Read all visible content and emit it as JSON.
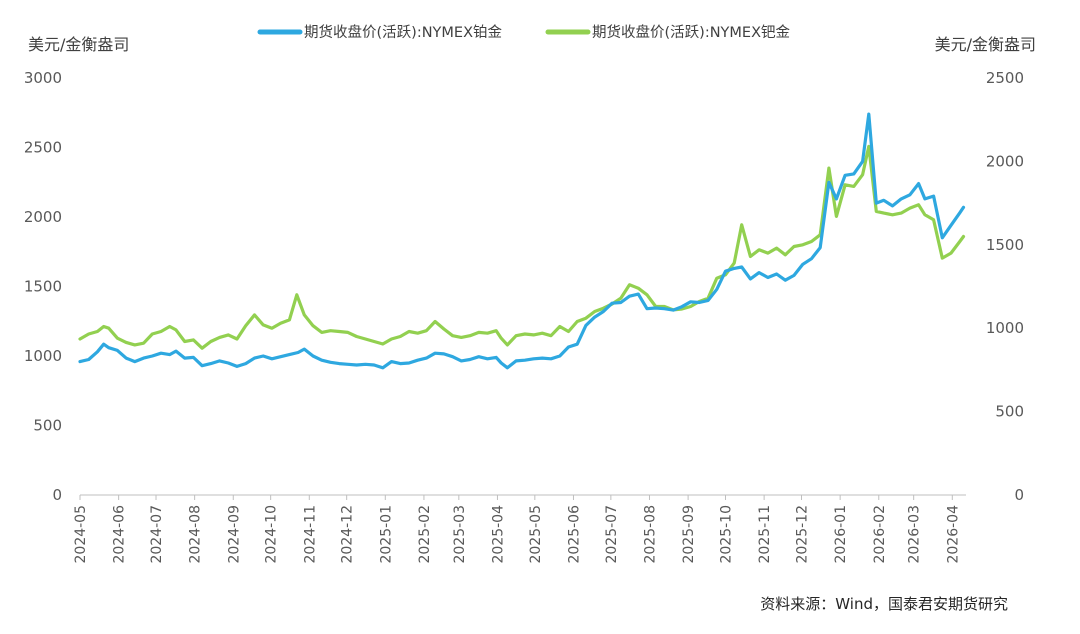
{
  "chart_data": {
    "type": "line",
    "legend_position": "top",
    "grid": false,
    "left_axis": {
      "unit": "美元/金衡盎司",
      "ylim": [
        0,
        3000
      ],
      "ticks": [
        "0",
        "500",
        "1000",
        "1500",
        "2000",
        "2500",
        "3000"
      ]
    },
    "right_axis": {
      "unit": "美元/金衡盎司",
      "ylim": [
        0,
        2500
      ],
      "ticks": [
        "0",
        "500",
        "1000",
        "1500",
        "2000",
        "2500"
      ]
    },
    "x_ticks": [
      "2024-05",
      "2024-06",
      "2024-07",
      "2024-08",
      "2024-09",
      "2024-10",
      "2024-11",
      "2024-12",
      "2025-01",
      "2025-02",
      "2025-03",
      "2025-04",
      "2025-05",
      "2025-06",
      "2025-07",
      "2025-08",
      "2025-09",
      "2025-10",
      "2025-11",
      "2025-12",
      "2026-01",
      "2026-02",
      "2026-03",
      "2026-04"
    ],
    "series": [
      {
        "name": "期货收盘价(活跃):NYMEX铂金",
        "axis": "left",
        "color": "#2EA8E0",
        "points": [
          [
            "2024-05-01",
            960
          ],
          [
            "2024-05-08",
            975
          ],
          [
            "2024-05-15",
            1030
          ],
          [
            "2024-05-20",
            1085
          ],
          [
            "2024-05-24",
            1060
          ],
          [
            "2024-05-31",
            1040
          ],
          [
            "2024-06-07",
            985
          ],
          [
            "2024-06-14",
            960
          ],
          [
            "2024-06-21",
            985
          ],
          [
            "2024-06-28",
            1000
          ],
          [
            "2024-07-05",
            1020
          ],
          [
            "2024-07-12",
            1010
          ],
          [
            "2024-07-17",
            1035
          ],
          [
            "2024-07-24",
            985
          ],
          [
            "2024-07-31",
            990
          ],
          [
            "2024-08-07",
            930
          ],
          [
            "2024-08-14",
            945
          ],
          [
            "2024-08-21",
            965
          ],
          [
            "2024-08-28",
            950
          ],
          [
            "2024-09-04",
            925
          ],
          [
            "2024-09-11",
            945
          ],
          [
            "2024-09-18",
            985
          ],
          [
            "2024-09-25",
            1000
          ],
          [
            "2024-10-02",
            980
          ],
          [
            "2024-10-09",
            995
          ],
          [
            "2024-10-16",
            1010
          ],
          [
            "2024-10-23",
            1025
          ],
          [
            "2024-10-28",
            1050
          ],
          [
            "2024-11-04",
            1000
          ],
          [
            "2024-11-11",
            970
          ],
          [
            "2024-11-18",
            955
          ],
          [
            "2024-11-25",
            945
          ],
          [
            "2024-12-02",
            940
          ],
          [
            "2024-12-09",
            935
          ],
          [
            "2024-12-16",
            940
          ],
          [
            "2024-12-23",
            935
          ],
          [
            "2024-12-30",
            915
          ],
          [
            "2025-01-06",
            960
          ],
          [
            "2025-01-13",
            945
          ],
          [
            "2025-01-20",
            950
          ],
          [
            "2025-01-27",
            970
          ],
          [
            "2025-02-03",
            985
          ],
          [
            "2025-02-10",
            1020
          ],
          [
            "2025-02-17",
            1015
          ],
          [
            "2025-02-24",
            995
          ],
          [
            "2025-03-03",
            965
          ],
          [
            "2025-03-10",
            975
          ],
          [
            "2025-03-17",
            995
          ],
          [
            "2025-03-24",
            980
          ],
          [
            "2025-03-31",
            990
          ],
          [
            "2025-04-04",
            950
          ],
          [
            "2025-04-09",
            915
          ],
          [
            "2025-04-16",
            965
          ],
          [
            "2025-04-23",
            970
          ],
          [
            "2025-04-30",
            980
          ],
          [
            "2025-05-07",
            985
          ],
          [
            "2025-05-14",
            980
          ],
          [
            "2025-05-21",
            1000
          ],
          [
            "2025-05-28",
            1065
          ],
          [
            "2025-06-04",
            1085
          ],
          [
            "2025-06-11",
            1220
          ],
          [
            "2025-06-18",
            1280
          ],
          [
            "2025-06-25",
            1320
          ],
          [
            "2025-07-02",
            1380
          ],
          [
            "2025-07-09",
            1385
          ],
          [
            "2025-07-16",
            1430
          ],
          [
            "2025-07-23",
            1445
          ],
          [
            "2025-07-30",
            1340
          ],
          [
            "2025-08-06",
            1345
          ],
          [
            "2025-08-13",
            1340
          ],
          [
            "2025-08-20",
            1330
          ],
          [
            "2025-08-27",
            1355
          ],
          [
            "2025-09-03",
            1390
          ],
          [
            "2025-09-10",
            1385
          ],
          [
            "2025-09-17",
            1400
          ],
          [
            "2025-09-24",
            1480
          ],
          [
            "2025-10-01",
            1610
          ],
          [
            "2025-10-08",
            1630
          ],
          [
            "2025-10-14",
            1640
          ],
          [
            "2025-10-21",
            1555
          ],
          [
            "2025-10-28",
            1600
          ],
          [
            "2025-11-04",
            1565
          ],
          [
            "2025-11-11",
            1590
          ],
          [
            "2025-11-18",
            1545
          ],
          [
            "2025-11-25",
            1580
          ],
          [
            "2025-12-02",
            1660
          ],
          [
            "2025-12-09",
            1700
          ],
          [
            "2025-12-16",
            1780
          ],
          [
            "2025-12-23",
            2250
          ],
          [
            "2025-12-29",
            2130
          ],
          [
            "2026-01-05",
            2300
          ],
          [
            "2026-01-12",
            2310
          ],
          [
            "2026-01-19",
            2400
          ],
          [
            "2026-01-24",
            2740
          ],
          [
            "2026-01-30",
            2100
          ],
          [
            "2026-02-05",
            2120
          ],
          [
            "2026-02-12",
            2080
          ],
          [
            "2026-02-19",
            2130
          ],
          [
            "2026-02-26",
            2160
          ],
          [
            "2026-03-05",
            2240
          ],
          [
            "2026-03-10",
            2130
          ],
          [
            "2026-03-17",
            2150
          ],
          [
            "2026-03-24",
            1850
          ],
          [
            "2026-03-31",
            1940
          ],
          [
            "2026-04-07",
            2030
          ],
          [
            "2026-04-10",
            2070
          ]
        ]
      },
      {
        "name": "期货收盘价(活跃):NYMEX钯金",
        "axis": "right",
        "color": "#92D050",
        "points": [
          [
            "2024-05-01",
            935
          ],
          [
            "2024-05-08",
            965
          ],
          [
            "2024-05-15",
            980
          ],
          [
            "2024-05-20",
            1010
          ],
          [
            "2024-05-24",
            1000
          ],
          [
            "2024-05-31",
            940
          ],
          [
            "2024-06-07",
            915
          ],
          [
            "2024-06-14",
            900
          ],
          [
            "2024-06-21",
            910
          ],
          [
            "2024-06-28",
            965
          ],
          [
            "2024-07-05",
            980
          ],
          [
            "2024-07-12",
            1010
          ],
          [
            "2024-07-17",
            990
          ],
          [
            "2024-07-24",
            920
          ],
          [
            "2024-07-31",
            930
          ],
          [
            "2024-08-07",
            880
          ],
          [
            "2024-08-14",
            920
          ],
          [
            "2024-08-21",
            945
          ],
          [
            "2024-08-28",
            960
          ],
          [
            "2024-09-04",
            935
          ],
          [
            "2024-09-11",
            1015
          ],
          [
            "2024-09-18",
            1080
          ],
          [
            "2024-09-25",
            1020
          ],
          [
            "2024-10-02",
            1000
          ],
          [
            "2024-10-09",
            1030
          ],
          [
            "2024-10-16",
            1050
          ],
          [
            "2024-10-22",
            1200
          ],
          [
            "2024-10-28",
            1080
          ],
          [
            "2024-11-04",
            1015
          ],
          [
            "2024-11-11",
            975
          ],
          [
            "2024-11-18",
            985
          ],
          [
            "2024-11-25",
            980
          ],
          [
            "2024-12-02",
            975
          ],
          [
            "2024-12-09",
            950
          ],
          [
            "2024-12-16",
            935
          ],
          [
            "2024-12-23",
            920
          ],
          [
            "2024-12-30",
            905
          ],
          [
            "2025-01-06",
            935
          ],
          [
            "2025-01-13",
            950
          ],
          [
            "2025-01-20",
            980
          ],
          [
            "2025-01-27",
            970
          ],
          [
            "2025-02-03",
            985
          ],
          [
            "2025-02-10",
            1040
          ],
          [
            "2025-02-17",
            995
          ],
          [
            "2025-02-24",
            955
          ],
          [
            "2025-03-03",
            945
          ],
          [
            "2025-03-10",
            955
          ],
          [
            "2025-03-17",
            975
          ],
          [
            "2025-03-24",
            970
          ],
          [
            "2025-03-31",
            985
          ],
          [
            "2025-04-04",
            940
          ],
          [
            "2025-04-09",
            900
          ],
          [
            "2025-04-16",
            955
          ],
          [
            "2025-04-23",
            965
          ],
          [
            "2025-04-30",
            960
          ],
          [
            "2025-05-07",
            970
          ],
          [
            "2025-05-14",
            955
          ],
          [
            "2025-05-21",
            1010
          ],
          [
            "2025-05-28",
            980
          ],
          [
            "2025-06-04",
            1040
          ],
          [
            "2025-06-11",
            1060
          ],
          [
            "2025-06-18",
            1100
          ],
          [
            "2025-06-25",
            1120
          ],
          [
            "2025-07-02",
            1145
          ],
          [
            "2025-07-09",
            1180
          ],
          [
            "2025-07-16",
            1260
          ],
          [
            "2025-07-23",
            1240
          ],
          [
            "2025-07-30",
            1200
          ],
          [
            "2025-08-06",
            1130
          ],
          [
            "2025-08-13",
            1130
          ],
          [
            "2025-08-20",
            1110
          ],
          [
            "2025-08-27",
            1115
          ],
          [
            "2025-09-03",
            1130
          ],
          [
            "2025-09-10",
            1160
          ],
          [
            "2025-09-17",
            1180
          ],
          [
            "2025-09-24",
            1300
          ],
          [
            "2025-10-01",
            1320
          ],
          [
            "2025-10-08",
            1390
          ],
          [
            "2025-10-14",
            1620
          ],
          [
            "2025-10-21",
            1430
          ],
          [
            "2025-10-28",
            1470
          ],
          [
            "2025-11-04",
            1450
          ],
          [
            "2025-11-11",
            1480
          ],
          [
            "2025-11-18",
            1440
          ],
          [
            "2025-11-25",
            1490
          ],
          [
            "2025-12-02",
            1500
          ],
          [
            "2025-12-09",
            1520
          ],
          [
            "2025-12-16",
            1560
          ],
          [
            "2025-12-23",
            1960
          ],
          [
            "2025-12-29",
            1670
          ],
          [
            "2026-01-05",
            1860
          ],
          [
            "2026-01-12",
            1850
          ],
          [
            "2026-01-19",
            1920
          ],
          [
            "2026-01-24",
            2090
          ],
          [
            "2026-01-30",
            1700
          ],
          [
            "2026-02-05",
            1690
          ],
          [
            "2026-02-12",
            1680
          ],
          [
            "2026-02-19",
            1690
          ],
          [
            "2026-02-26",
            1720
          ],
          [
            "2026-03-05",
            1740
          ],
          [
            "2026-03-10",
            1680
          ],
          [
            "2026-03-17",
            1650
          ],
          [
            "2026-03-24",
            1420
          ],
          [
            "2026-03-31",
            1450
          ],
          [
            "2026-04-07",
            1520
          ],
          [
            "2026-04-10",
            1550
          ]
        ]
      }
    ],
    "source": "资料来源：Wind，国泰君安期货研究"
  }
}
